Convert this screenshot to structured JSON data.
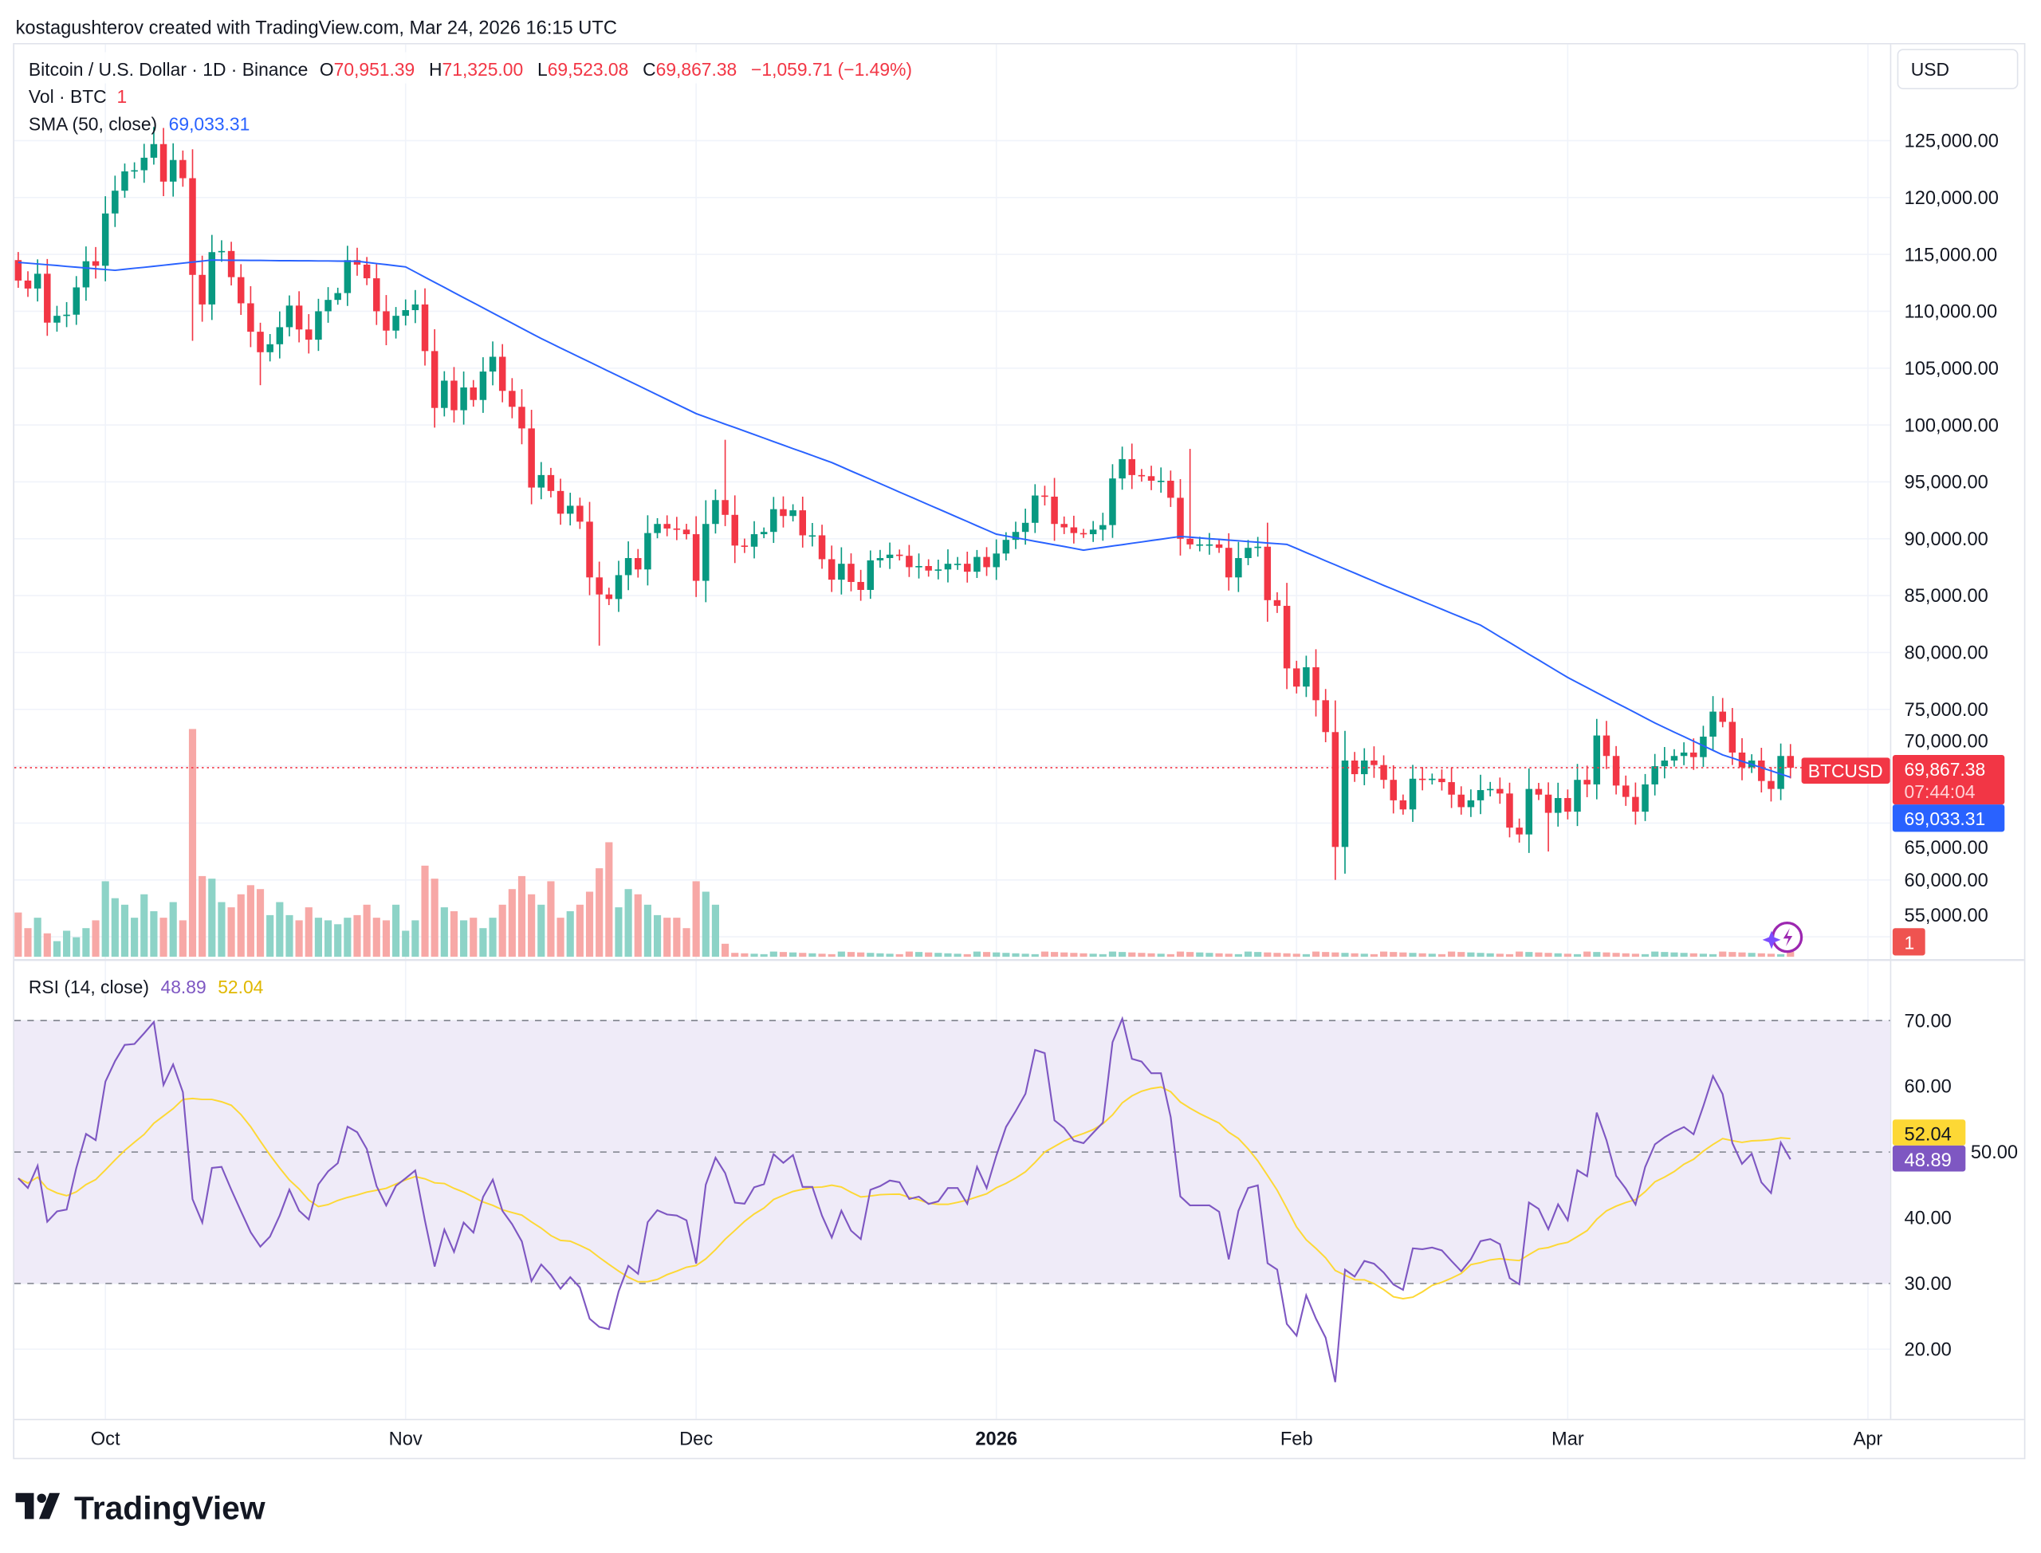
{
  "header": {
    "attribution": "kostagushterov created with TradingView.com, Mar 24, 2026 16:15 UTC",
    "currency_button": "USD",
    "brand": "TradingView"
  },
  "legend": {
    "symbol": "Bitcoin / U.S. Dollar · 1D · Binance",
    "o_label": "O",
    "o_value": "70,951.39",
    "h_label": "H",
    "h_value": "71,325.00",
    "l_label": "L",
    "l_value": "69,523.08",
    "c_label": "C",
    "c_value": "69,867.38",
    "change": "−1,059.71 (−1.49%)",
    "vol_label": "Vol · BTC",
    "vol_value": "1",
    "sma_label": "SMA (50, close)",
    "sma_value": "69,033.31",
    "rsi_label": "RSI (14, close)",
    "rsi_value": "48.89",
    "rsi_ma_value": "52.04"
  },
  "price_labels": {
    "symbol_tag": "BTCUSD",
    "last_price": "69,867.38",
    "countdown": "07:44:04",
    "sma_price": "69,033.31",
    "volume_tag": "1",
    "rsi_ma_tag": "52.04",
    "rsi_tag": "48.89"
  },
  "colors": {
    "up": "#089981",
    "down": "#f23645",
    "sma": "#2962ff",
    "vol_up": "#8dd3c7",
    "vol_down": "#f7a8a6",
    "rsi": "#7e57c2",
    "rsi_ma": "#fdd835",
    "rsi_band": "#efebf8"
  },
  "chart_data": [
    {
      "type": "candlestick",
      "title": "Bitcoin / U.S. Dollar · 1D · Binance",
      "unit": "thousand USD",
      "first_open": 114.5,
      "closes": [
        112.7,
        112.0,
        113.3,
        109.0,
        109.6,
        109.7,
        112.1,
        114.4,
        114.0,
        118.6,
        120.6,
        122.3,
        122.4,
        123.5,
        124.7,
        121.4,
        123.3,
        121.7,
        113.2,
        110.6,
        115.2,
        115.3,
        113.0,
        110.7,
        108.2,
        106.4,
        107.1,
        108.6,
        110.5,
        108.4,
        107.5,
        110.0,
        111.0,
        111.6,
        114.5,
        114.1,
        112.9,
        110.0,
        108.3,
        109.6,
        110.1,
        110.6,
        106.5,
        101.5,
        103.9,
        101.3,
        103.3,
        102.2,
        104.7,
        106.0,
        103.0,
        101.6,
        99.7,
        94.5,
        95.6,
        94.2,
        92.2,
        92.9,
        91.5,
        86.6,
        85.1,
        84.7,
        86.8,
        88.3,
        87.3,
        90.5,
        91.3,
        90.9,
        90.8,
        90.4,
        86.3,
        91.3,
        93.4,
        92.1,
        89.4,
        89.3,
        90.4,
        90.6,
        92.6,
        92.0,
        92.5,
        90.3,
        90.3,
        88.2,
        86.4,
        87.8,
        86.2,
        85.5,
        88.1,
        88.3,
        88.6,
        88.5,
        87.5,
        87.6,
        87.2,
        87.3,
        87.8,
        87.8,
        87.1,
        88.4,
        87.5,
        88.7,
        89.9,
        90.6,
        91.4,
        93.8,
        93.7,
        91.3,
        91.0,
        90.5,
        90.4,
        90.8,
        91.2,
        95.3,
        97.0,
        95.6,
        95.5,
        95.1,
        95.1,
        93.6,
        90.0,
        89.5,
        89.5,
        89.5,
        89.2,
        86.6,
        88.3,
        89.2,
        89.3,
        84.6,
        84.1,
        78.6,
        77.0,
        78.7,
        75.8,
        73.0,
        62.9,
        70.5,
        69.3,
        70.5,
        70.1,
        68.8,
        67.0,
        66.2,
        68.9,
        68.8,
        68.9,
        68.6,
        67.5,
        66.4,
        67.0,
        67.9,
        68.0,
        67.6,
        64.6,
        64.0,
        68.0,
        67.5,
        65.9,
        67.2,
        66.0,
        68.8,
        68.4,
        72.7,
        70.9,
        68.3,
        67.3,
        66.0,
        68.4,
        70.0,
        70.5,
        70.9,
        71.2,
        70.8,
        72.6,
        74.8,
        73.9,
        71.2,
        69.9,
        70.5,
        68.7,
        68.0,
        70.9,
        69.87
      ],
      "high_overrides": [
        {
          "day": 73,
          "value": 98.7
        },
        {
          "day": 14,
          "value": 126.2
        },
        {
          "day": 121,
          "value": 97.9
        },
        {
          "day": 176,
          "value": 76.0
        }
      ],
      "low_overrides": [
        {
          "day": 18,
          "value": 107.4
        },
        {
          "day": 25,
          "value": 103.5
        },
        {
          "day": 60,
          "value": 80.6
        },
        {
          "day": 136,
          "value": 60.0
        },
        {
          "day": 158,
          "value": 62.5
        }
      ],
      "volume_relative": [
        34,
        22,
        30,
        18,
        12,
        20,
        15,
        22,
        28,
        58,
        45,
        40,
        30,
        48,
        35,
        30,
        42,
        28,
        175,
        62,
        60,
        42,
        38,
        48,
        55,
        52,
        32,
        42,
        32,
        28,
        38,
        30,
        28,
        25,
        30,
        32,
        40,
        30,
        28,
        40,
        20,
        28,
        70,
        60,
        38,
        35,
        28,
        30,
        22,
        30,
        40,
        52,
        62,
        48,
        40,
        58,
        30,
        35,
        40,
        50,
        68,
        88,
        38,
        52,
        48,
        40,
        32,
        30,
        30,
        22,
        58,
        50,
        40,
        10
      ],
      "sma50_anchors": [
        {
          "day": 0,
          "value": 114.3
        },
        {
          "day": 10,
          "value": 113.6
        },
        {
          "day": 20,
          "value": 114.5
        },
        {
          "day": 35,
          "value": 114.4
        },
        {
          "day": 40,
          "value": 113.9
        },
        {
          "day": 54,
          "value": 107.6
        },
        {
          "day": 70,
          "value": 101.0
        },
        {
          "day": 84,
          "value": 96.7
        },
        {
          "day": 101,
          "value": 90.4
        },
        {
          "day": 110,
          "value": 89.0
        },
        {
          "day": 120,
          "value": 90.2
        },
        {
          "day": 131,
          "value": 89.5
        },
        {
          "day": 141,
          "value": 85.9
        },
        {
          "day": 151,
          "value": 82.4
        },
        {
          "day": 160,
          "value": 77.8
        },
        {
          "day": 169,
          "value": 73.8
        },
        {
          "day": 176,
          "value": 71.0
        },
        {
          "day": 183,
          "value": 69.03
        }
      ],
      "y_ticks": [
        "125,000.00",
        "120,000.00",
        "115,000.00",
        "110,000.00",
        "105,000.00",
        "100,000.00",
        "95,000.00",
        "90,000.00",
        "85,000.00",
        "80,000.00",
        "75,000.00",
        "70,000.00",
        "65,000.00",
        "60,000.00",
        "55,000.00"
      ],
      "y_tick_values": [
        125,
        120,
        115,
        110,
        105,
        100,
        95,
        90,
        85,
        80,
        75,
        70,
        65,
        60,
        55
      ],
      "x_ticks": [
        {
          "label": "Oct",
          "day": 9
        },
        {
          "label": "Nov",
          "day": 40
        },
        {
          "label": "Dec",
          "day": 70
        },
        {
          "label": "2026",
          "day": 101
        },
        {
          "label": "Feb",
          "day": 132
        },
        {
          "label": "Mar",
          "day": 160
        },
        {
          "label": "Apr",
          "day": 191
        }
      ],
      "last_price": 69.867
    },
    {
      "type": "line",
      "title": "RSI (14, close)",
      "series": [
        {
          "name": "RSI",
          "period": 14
        },
        {
          "name": "RSI MA",
          "period": 14
        }
      ],
      "ylim": [
        10,
        75
      ],
      "band": [
        30,
        70
      ],
      "y_ticks": [
        "70.00",
        "60.00",
        "50.00",
        "40.00",
        "30.00",
        "20.00"
      ],
      "y_tick_values": [
        70,
        60,
        50,
        40,
        30,
        20
      ],
      "last_rsi": 48.89,
      "last_rsi_ma": 52.04
    }
  ]
}
